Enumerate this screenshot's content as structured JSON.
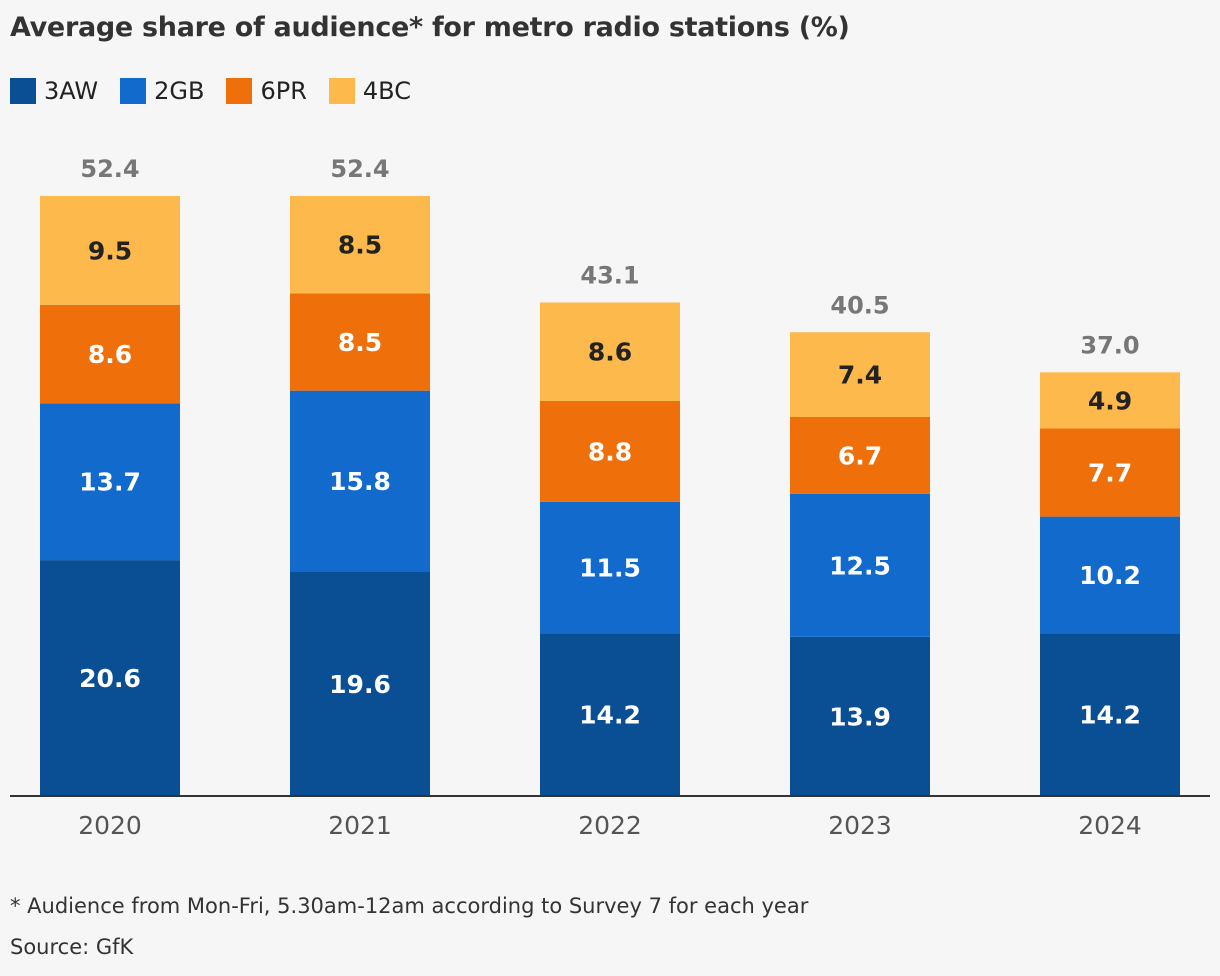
{
  "title": "Average share of audience* for metro radio stations (%)",
  "footnote": "* Audience from Mon-Fri, 5.30am-12am according to Survey 7 for each year",
  "source": "Source: GfK",
  "chart_data": {
    "type": "bar",
    "stacked": true,
    "categories": [
      "2020",
      "2021",
      "2022",
      "2023",
      "2024"
    ],
    "series": [
      {
        "name": "3AW",
        "color": "#0a4f93",
        "values": [
          20.6,
          19.6,
          14.2,
          13.9,
          14.2
        ],
        "labels": [
          "20.6",
          "19.6",
          "14.2",
          "13.9",
          "14.2"
        ]
      },
      {
        "name": "2GB",
        "color": "#126bcc",
        "values": [
          13.7,
          15.8,
          11.5,
          12.5,
          10.2
        ],
        "labels": [
          "13.7",
          "15.8",
          "11.5",
          "12.5",
          "10.2"
        ]
      },
      {
        "name": "6PR",
        "color": "#ef700b",
        "values": [
          8.6,
          8.5,
          8.8,
          6.7,
          7.7
        ],
        "labels": [
          "8.6",
          "8.5",
          "8.8",
          "6.7",
          "7.7"
        ]
      },
      {
        "name": "4BC",
        "color": "#fdb94b",
        "values": [
          9.5,
          8.5,
          8.6,
          7.4,
          4.9
        ],
        "labels": [
          "9.5",
          "8.5",
          "8.6",
          "7.4",
          "4.9"
        ]
      }
    ],
    "totals": [
      "52.4",
      "52.4",
      "43.1",
      "40.5",
      "37.0"
    ],
    "ylim": [
      0,
      52.4
    ],
    "grid": false,
    "legend_position": "top-left"
  }
}
